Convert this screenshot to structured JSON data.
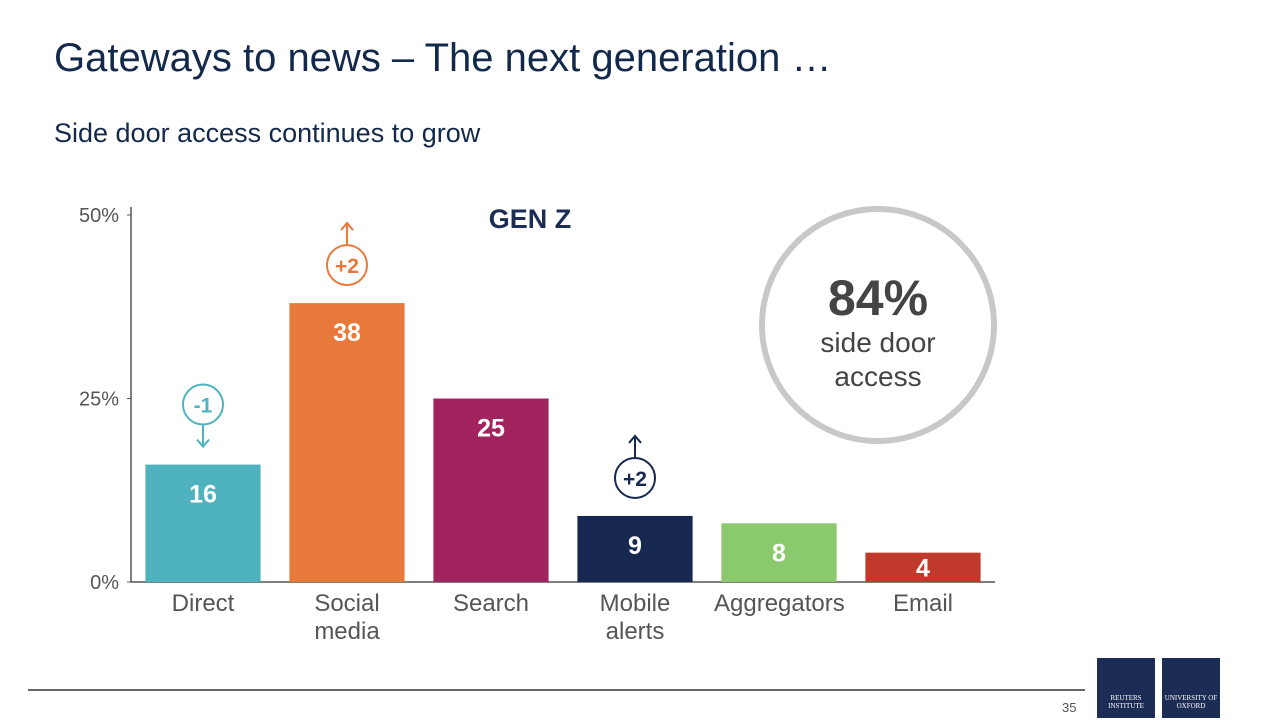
{
  "slide": {
    "title": "Gateways to news – The next generation …",
    "subtitle": "Side door access continues to grow",
    "page_number": "35",
    "logos": [
      "REUTERS INSTITUTE",
      "UNIVERSITY OF OXFORD"
    ]
  },
  "chart_data": {
    "type": "bar",
    "subtitle": "GEN Z",
    "categories": [
      "Direct",
      "Social media",
      "Search",
      "Mobile alerts",
      "Aggregators",
      "Email"
    ],
    "values": [
      16,
      38,
      25,
      9,
      8,
      4
    ],
    "colors": [
      "#4fb3bf",
      "#e8793a",
      "#a1245f",
      "#16284f",
      "#8bc96e",
      "#c0392b"
    ],
    "changes": [
      {
        "value": -1,
        "label": "-1"
      },
      {
        "value": 2,
        "label": "+2"
      },
      null,
      {
        "value": 2,
        "label": "+2"
      },
      null,
      null
    ],
    "ylim": [
      0,
      50
    ],
    "yticks": [
      {
        "value": 0,
        "label": "0%"
      },
      {
        "value": 25,
        "label": "25%"
      },
      {
        "value": 50,
        "label": "50%"
      }
    ],
    "callout": {
      "value": {
        "value": 84,
        "label": "84%"
      },
      "text": "side door access"
    }
  }
}
